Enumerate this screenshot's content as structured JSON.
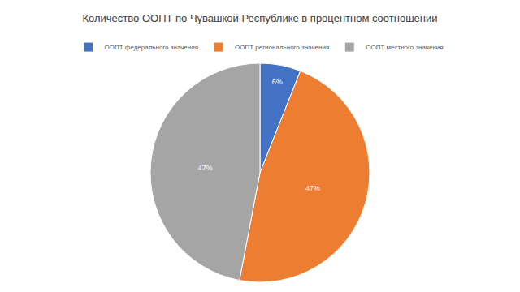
{
  "chart_data": {
    "type": "pie",
    "title": "Количество ООПТ по Чувашкой Республике в процентном соотношении",
    "categories": [
      "ООПТ федерального значения",
      "ООПТ регионального значения",
      "ООПТ местного значения"
    ],
    "values": [
      6,
      47,
      47
    ],
    "value_labels": [
      "6%",
      "47%",
      "47%"
    ],
    "colors": [
      "#4472c4",
      "#ed7d31",
      "#a5a5a5"
    ],
    "data_labels": true,
    "legend": "top"
  }
}
